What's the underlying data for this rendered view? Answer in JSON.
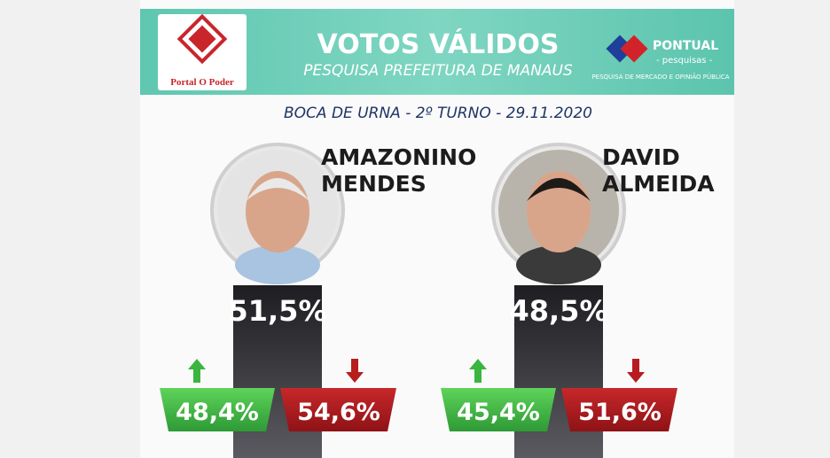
{
  "header": {
    "title": "VOTOS VÁLIDOS",
    "subtitle": "PESQUISA PREFEITURA DE MANAUS",
    "left_logo": "Portal O Poder",
    "right_logo": {
      "name": "PONTUAL",
      "sub": "- pesquisas -",
      "tagline": "PESQUISA DE MERCADO E OPINIÃO PÚBLICA"
    }
  },
  "survey": "BOCA DE URNA - 2º TURNO - 29.11.2020",
  "candidates": [
    {
      "name_lines": [
        "AMAZONINO",
        "MENDES"
      ],
      "result": "51,5%",
      "low": "48,4%",
      "high": "54,6%"
    },
    {
      "name_lines": [
        "DAVID",
        "ALMEIDA"
      ],
      "result": "48,5%",
      "low": "45,4%",
      "high": "51,6%"
    }
  ]
}
